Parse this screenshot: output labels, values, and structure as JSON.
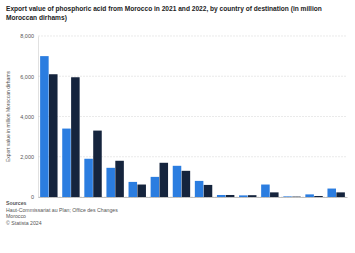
{
  "chart_data": {
    "type": "bar",
    "title": "Export value of phosphoric acid from Morocco in 2021 and 2022, by country of destination (in million Moroccan dirhams)",
    "y_label": "Export value in million Moroccan dirhams",
    "categories": [
      null,
      null,
      null,
      null,
      null,
      null,
      null,
      null,
      null,
      null,
      null,
      null,
      null,
      null
    ],
    "series": [
      {
        "color": "#2b7de0",
        "values": [
          7000,
          3400,
          1900,
          1450,
          750,
          1000,
          1550,
          800,
          100,
          80,
          620,
          30,
          130,
          420
        ]
      },
      {
        "color": "#15243d",
        "values": [
          6100,
          5950,
          3300,
          1800,
          620,
          1700,
          1300,
          600,
          100,
          90,
          230,
          20,
          50,
          230
        ]
      }
    ],
    "ylim": [
      0,
      8000
    ],
    "yticks": [
      0,
      {
        "value": 2000,
        "label": "2,000"
      },
      {
        "value": 4000,
        "label": "4,000"
      },
      {
        "value": 6000,
        "label": "6,000"
      },
      {
        "value": 8000,
        "label": "8,000"
      }
    ],
    "grid": true,
    "annotations": [
      "Sources",
      "Haut-Commissariat au Plan; Office des Changes",
      "Morocco",
      "© Statista 2024"
    ]
  }
}
